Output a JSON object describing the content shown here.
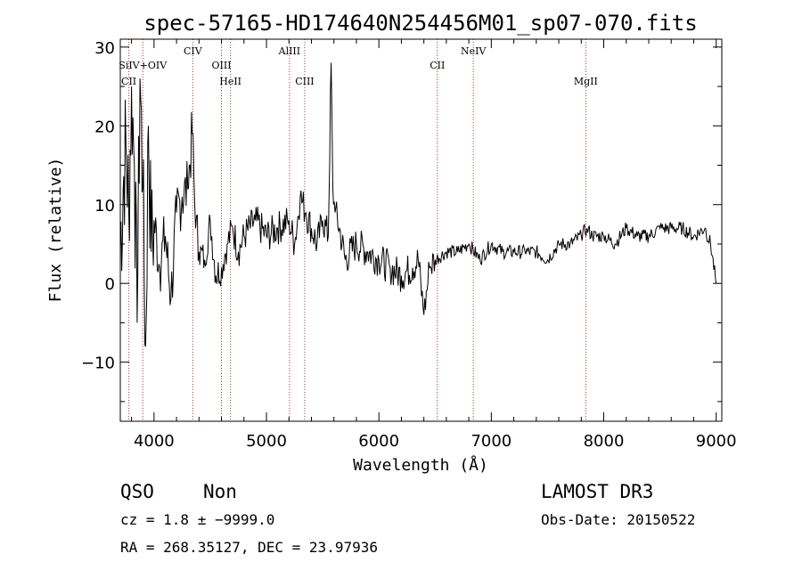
{
  "chart_data": {
    "type": "line",
    "title": "spec-57165-HD174640N254456M01_sp07-070.fits",
    "xlabel": "Wavelength (Å)",
    "ylabel": "Flux (relative)",
    "xlim": [
      3700,
      9050
    ],
    "ylim": [
      -17.5,
      31
    ],
    "xticks": [
      4000,
      5000,
      6000,
      7000,
      8000,
      9000
    ],
    "xtick_labels": [
      "4000",
      "5000",
      "6000",
      "7000",
      "8000",
      "9000"
    ],
    "yticks": [
      -10,
      0,
      10,
      20,
      30
    ],
    "ytick_labels": [
      "−10",
      "0",
      "10",
      "20",
      "30"
    ],
    "grid": false,
    "emission_lines": [
      {
        "name": "CII",
        "x": 3776,
        "row": 3
      },
      {
        "name": "SiIV+OIV",
        "x": 3900,
        "row": 2
      },
      {
        "name": "CIV",
        "x": 4345,
        "row": 1
      },
      {
        "name": "OIII",
        "x": 4600,
        "row": 2
      },
      {
        "name": "HeII",
        "x": 4680,
        "row": 3
      },
      {
        "name": "AlIII",
        "x": 5205,
        "row": 1
      },
      {
        "name": "CIII",
        "x": 5340,
        "row": 3
      },
      {
        "name": "CII",
        "x": 6520,
        "row": 2
      },
      {
        "name": "NeIV",
        "x": 6840,
        "row": 1
      },
      {
        "name": "MgII",
        "x": 7840,
        "row": 3
      }
    ],
    "series": [
      {
        "name": "flux",
        "x": [
          3700,
          3725,
          3750,
          3775,
          3800,
          3825,
          3850,
          3875,
          3900,
          3925,
          3950,
          3975,
          4000,
          4050,
          4100,
          4150,
          4200,
          4250,
          4300,
          4340,
          4370,
          4400,
          4450,
          4500,
          4550,
          4600,
          4650,
          4700,
          4750,
          4800,
          4900,
          5000,
          5100,
          5200,
          5250,
          5300,
          5350,
          5400,
          5450,
          5500,
          5550,
          5575,
          5590,
          5610,
          5650,
          5700,
          5800,
          5900,
          6000,
          6100,
          6200,
          6300,
          6350,
          6400,
          6450,
          6500,
          6600,
          6700,
          6800,
          6900,
          7000,
          7100,
          7200,
          7300,
          7400,
          7500,
          7600,
          7700,
          7800,
          7850,
          7900,
          8000,
          8100,
          8200,
          8300,
          8400,
          8500,
          8600,
          8700,
          8800,
          8900,
          8950,
          9000
        ],
        "values": [
          5,
          12,
          18,
          9,
          25,
          15,
          -5,
          26,
          12,
          -8,
          20,
          4,
          8,
          2,
          6,
          -2,
          9,
          11,
          12,
          19,
          7,
          4,
          3,
          8,
          1,
          2,
          5,
          7,
          4,
          6,
          8,
          6,
          7,
          8,
          5,
          11,
          9,
          7,
          5,
          8,
          6,
          28,
          12,
          9,
          7,
          3,
          5,
          4,
          3,
          2,
          1,
          2,
          3,
          -4,
          2,
          3,
          4,
          4,
          5,
          3,
          5,
          4,
          4,
          4,
          4,
          3,
          5,
          5,
          6,
          7,
          6,
          6,
          5,
          7,
          6,
          6,
          7,
          7,
          7,
          6,
          7,
          5,
          0
        ]
      }
    ]
  },
  "info": {
    "class": "QSO",
    "subclass": "Non",
    "survey": "LAMOST DR3",
    "cz": "cz = 1.8 ± −9999.0",
    "obs_date": "Obs-Date: 20150522",
    "coords": "RA = 268.35127, DEC =  23.97936"
  }
}
